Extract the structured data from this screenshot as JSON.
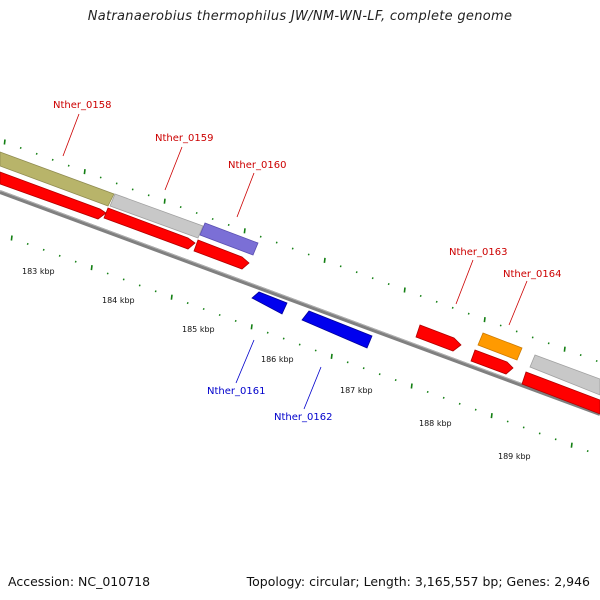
{
  "title": "Natranaerobius thermophilus JW/NM-WN-LF, complete genome",
  "footer": {
    "accession": "Accession: NC_010718",
    "stats": "Topology: circular; Length: 3,165,557 bp; Genes: 2,946"
  },
  "colors": {
    "forward_cds": "#ff0000",
    "reverse_cds": "#0000ee",
    "olive_feature": "#b8b46a",
    "gray_feature": "#c8c8c8",
    "purple_feature": "#7b6fd6",
    "orange_feature": "#ff9a00",
    "backbone": "#808080",
    "tick": "#127f12",
    "label_forward": "#cc0000",
    "label_reverse": "#0000cc"
  },
  "scale_ticks": [
    "183 kbp",
    "184 kbp",
    "185 kbp",
    "186 kbp",
    "187 kbp",
    "188 kbp",
    "189 kbp"
  ],
  "gene_labels": [
    {
      "text": "Nther_0158",
      "strand": "forward"
    },
    {
      "text": "Nther_0159",
      "strand": "forward"
    },
    {
      "text": "Nther_0160",
      "strand": "forward"
    },
    {
      "text": "Nther_0161",
      "strand": "reverse"
    },
    {
      "text": "Nther_0162",
      "strand": "reverse"
    },
    {
      "text": "Nther_0163",
      "strand": "forward"
    },
    {
      "text": "Nther_0164",
      "strand": "forward"
    }
  ]
}
